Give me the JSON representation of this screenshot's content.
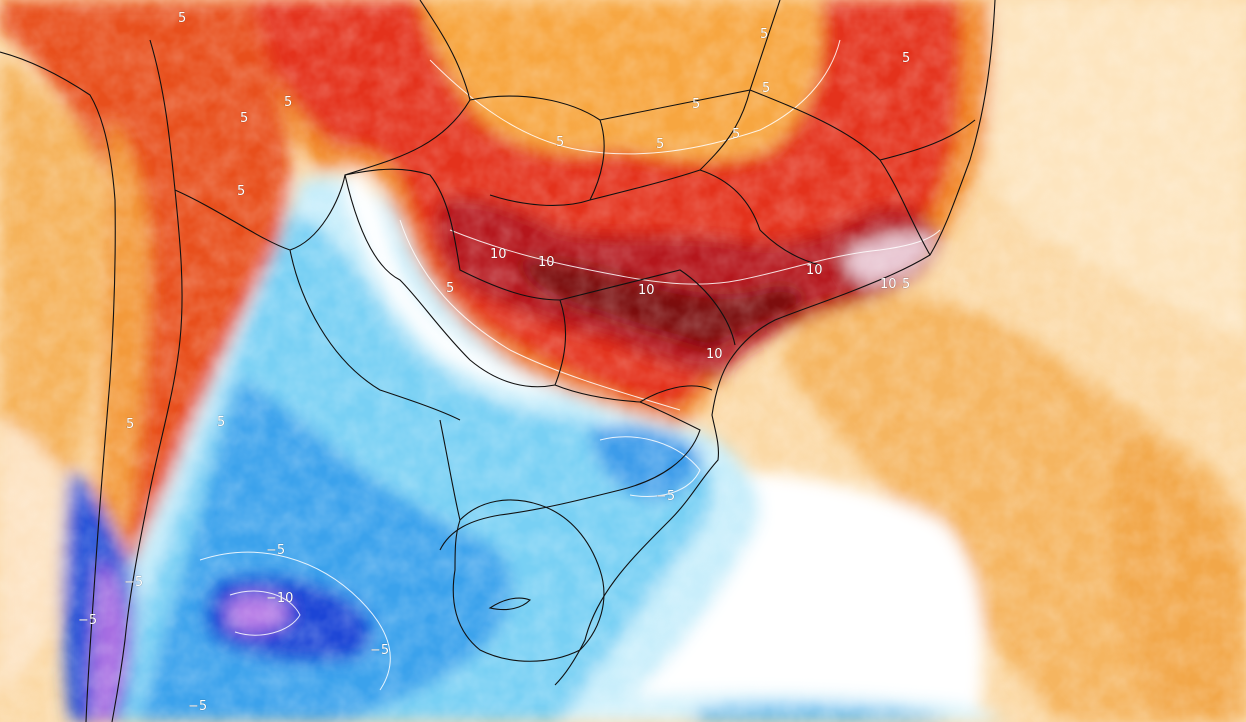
{
  "colors": {
    "sea_warm_light": "#fde5bf",
    "sea_warm": "#f7b75a",
    "warm_orange": "#f28a2c",
    "warm_red": "#e4321c",
    "hot_dark_red": "#a80f12",
    "hot_maroon": "#6e0a0c",
    "extreme_pink": "#e8c6d2",
    "neutral_white": "#ffffff",
    "cool_light": "#c8eefb",
    "cool_cyan": "#78d0f4",
    "cool_blue": "#2f8fe6",
    "cold_blue": "#1b3fd4",
    "cold_purple": "#8a4fd8",
    "cold_violet": "#c07ee8",
    "boundary_line": "#111111",
    "contour_line": "#ffffff"
  },
  "contour_labels": [
    {
      "id": "andes-north-5a",
      "text": "5"
    },
    {
      "id": "andes-north-5b",
      "text": "5"
    },
    {
      "id": "andes-5c",
      "text": "5"
    },
    {
      "id": "andes-5d",
      "text": "5"
    },
    {
      "id": "andes-5e",
      "text": "5"
    },
    {
      "id": "andes-5f",
      "text": "5"
    },
    {
      "id": "brazil-north-5a",
      "text": "5"
    },
    {
      "id": "brazil-north-5b",
      "text": "5"
    },
    {
      "id": "brazil-north-5c",
      "text": "5"
    },
    {
      "id": "brazil-north-5d",
      "text": "5"
    },
    {
      "id": "brazil-north-5e",
      "text": "5"
    },
    {
      "id": "brazil-north-5f",
      "text": "5"
    },
    {
      "id": "brazil-north-5g",
      "text": "5"
    },
    {
      "id": "paraguay-5",
      "text": "5"
    },
    {
      "id": "warm-10a",
      "text": "10"
    },
    {
      "id": "warm-10b",
      "text": "10"
    },
    {
      "id": "warm-10c",
      "text": "10"
    },
    {
      "id": "warm-10d",
      "text": "10"
    },
    {
      "id": "coast-10e",
      "text": "10"
    },
    {
      "id": "coast-5",
      "text": "5"
    },
    {
      "id": "south-10",
      "text": "10"
    },
    {
      "id": "rs-coast-neg5",
      "text": "−5"
    },
    {
      "id": "patagonia-neg5a",
      "text": "−5"
    },
    {
      "id": "patagonia-neg10",
      "text": "−10"
    },
    {
      "id": "patagonia-neg5b",
      "text": "−5"
    },
    {
      "id": "andes-south-neg5",
      "text": "−5"
    },
    {
      "id": "andes-south-neg5b",
      "text": "−5"
    },
    {
      "id": "south-neg5c",
      "text": "−5"
    }
  ]
}
